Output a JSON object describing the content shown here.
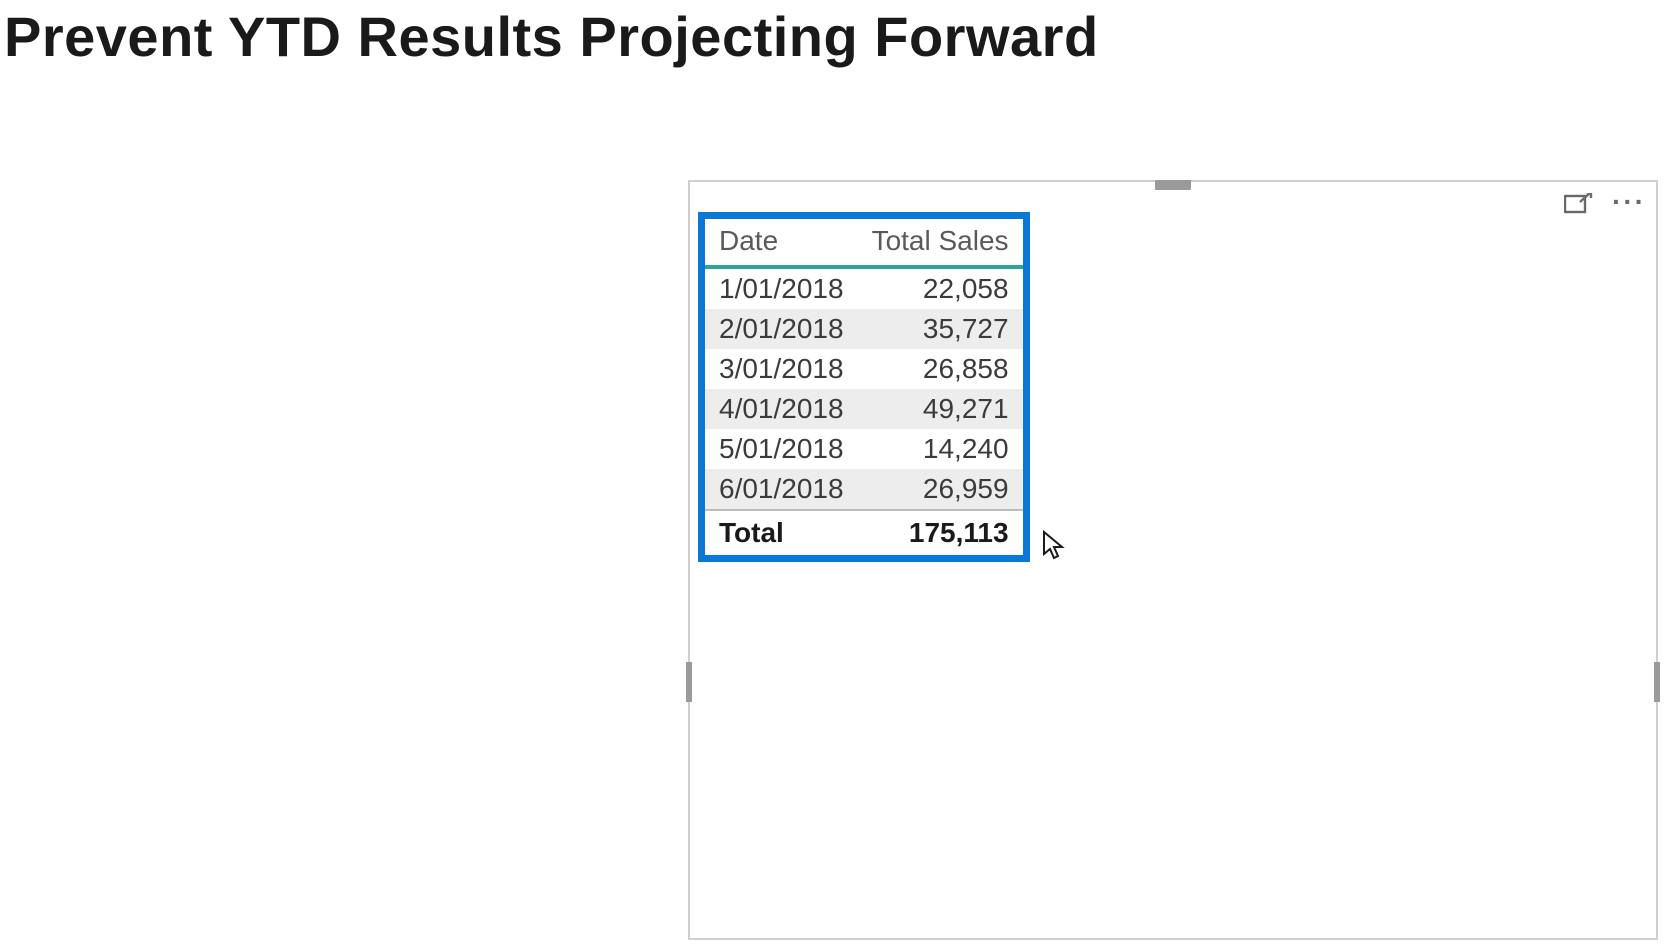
{
  "page": {
    "title": "Prevent YTD Results Projecting Forward"
  },
  "visual": {
    "frame_border_color": "#cfcfcf",
    "selection_border_color": "#0a78d6",
    "header_underline_color": "#2fa39a",
    "stripe_color": "#ededed"
  },
  "table": {
    "columns": [
      {
        "key": "date",
        "label": "Date",
        "align": "left"
      },
      {
        "key": "sales",
        "label": "Total Sales",
        "align": "right"
      }
    ],
    "rows": [
      {
        "date": "1/01/2018",
        "sales": "22,058"
      },
      {
        "date": "2/01/2018",
        "sales": "35,727"
      },
      {
        "date": "3/01/2018",
        "sales": "26,858"
      },
      {
        "date": "4/01/2018",
        "sales": "49,271"
      },
      {
        "date": "5/01/2018",
        "sales": "14,240"
      },
      {
        "date": "6/01/2018",
        "sales": "26,959"
      }
    ],
    "total": {
      "label": "Total",
      "sales": "175,113"
    }
  }
}
